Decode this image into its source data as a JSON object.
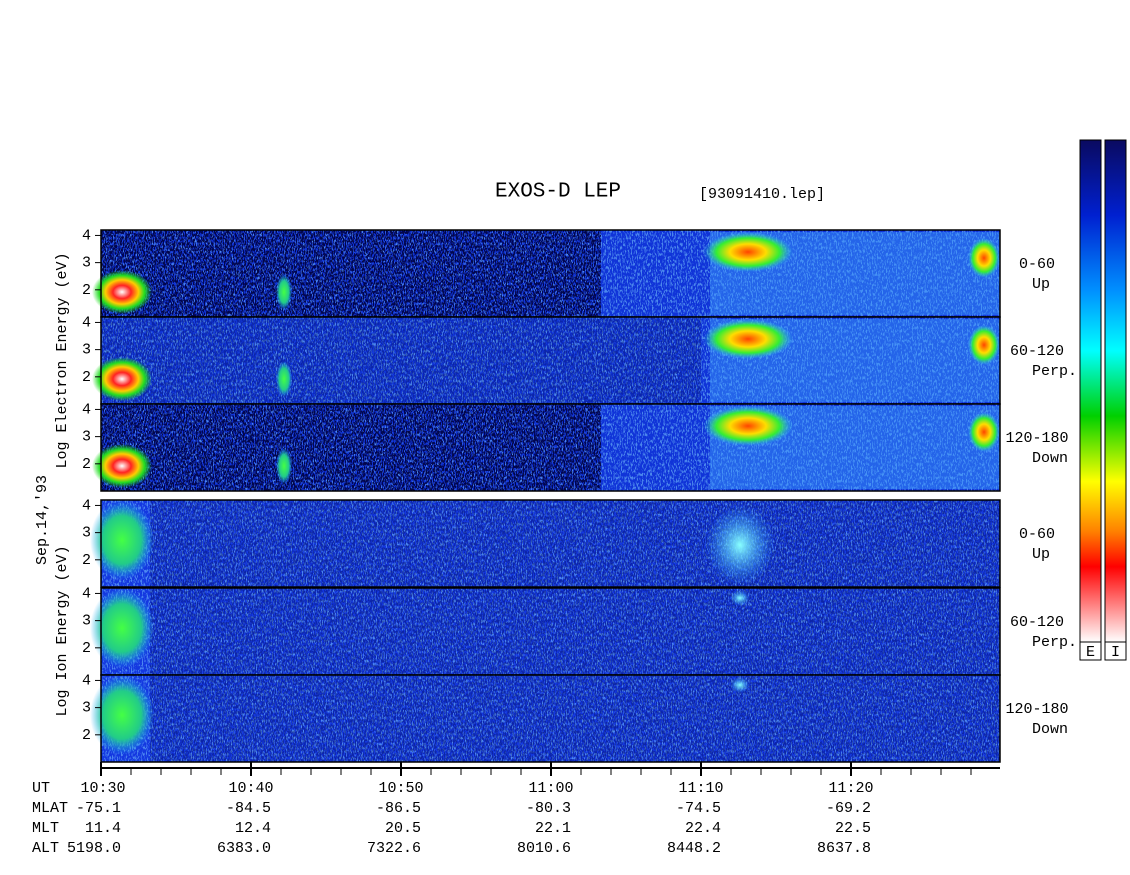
{
  "title": "EXOS-D LEP",
  "file": "[93091410.lep]",
  "date": "Sep.14,'93",
  "energy_range": [
    1,
    4.2
  ],
  "energy_ticks": [
    4,
    3,
    2
  ],
  "groups": [
    {
      "label": "Log Electron Energy (eV)",
      "panels": [
        {
          "angle": "0-60",
          "dir": "Up"
        },
        {
          "angle": "60-120",
          "dir": "Perp."
        },
        {
          "angle": "120-180",
          "dir": "Down"
        }
      ]
    },
    {
      "label": "Log Ion Energy (eV)",
      "panels": [
        {
          "angle": "0-60",
          "dir": "Up"
        },
        {
          "angle": "60-120",
          "dir": "Perp."
        },
        {
          "angle": "120-180",
          "dir": "Down"
        }
      ]
    }
  ],
  "colorbars": [
    "E",
    "I"
  ],
  "footer": {
    "rows": [
      {
        "label": "UT",
        "values": [
          "10:30",
          "10:40",
          "10:50",
          "11:00",
          "11:10",
          "11:20"
        ]
      },
      {
        "label": "MLAT",
        "values": [
          "-75.1",
          "-84.5",
          "-86.5",
          "-80.3",
          "-74.5",
          "-69.2"
        ]
      },
      {
        "label": "MLT",
        "values": [
          "11.4",
          "12.4",
          "20.5",
          "22.1",
          "22.4",
          "22.5"
        ]
      },
      {
        "label": "ALT",
        "values": [
          "5198.0",
          "6383.0",
          "7322.6",
          "8010.6",
          "8448.2",
          "8637.8"
        ]
      }
    ]
  }
}
